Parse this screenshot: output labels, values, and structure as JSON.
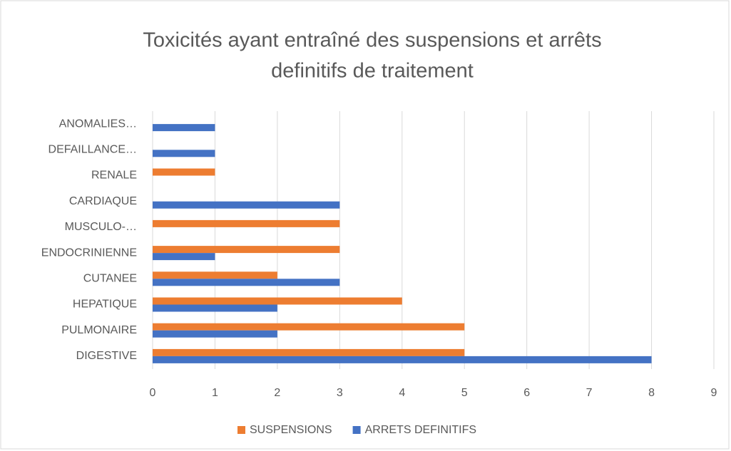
{
  "chart_data": {
    "type": "hbar",
    "title": [
      "Toxicités ayant entraîné des suspensions et arrêts",
      "definitifs de traitement"
    ],
    "categories": [
      "DIGESTIVE",
      "PULMONAIRE",
      "HEPATIQUE",
      "CUTANEE",
      "ENDOCRINIENNE",
      "MUSCULO-…",
      "CARDIAQUE",
      "RENALE",
      "DEFAILLANCE…",
      "ANOMALIES…"
    ],
    "series": [
      {
        "name": "SUSPENSIONS",
        "color": "#ed7d31",
        "values": [
          5,
          5,
          4,
          2,
          3,
          3,
          0,
          1,
          0,
          0
        ]
      },
      {
        "name": "ARRETS DEFINITIFS",
        "color": "#4472c4",
        "values": [
          8,
          2,
          2,
          3,
          1,
          0,
          3,
          0,
          1,
          1
        ]
      }
    ],
    "xlim": [
      0,
      9
    ],
    "xticks": [
      0,
      1,
      2,
      3,
      4,
      5,
      6,
      7,
      8,
      9
    ],
    "grid": true,
    "legend": "bottom"
  }
}
